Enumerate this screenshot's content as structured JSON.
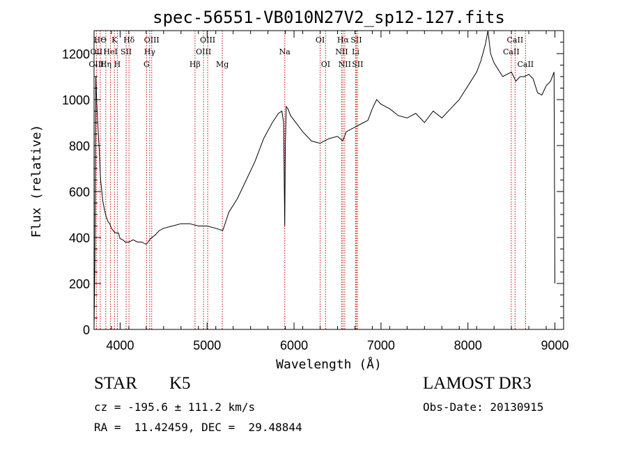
{
  "colors": {
    "spectrum": "#000000",
    "line_marker": "#cc0000",
    "axis": "#000000"
  },
  "chart_data": {
    "type": "line",
    "title": "spec-56551-VB010N27V2_sp12-127.fits",
    "xlabel": "Wavelength (Å)",
    "ylabel": "Flux (relative)",
    "xlim": [
      3700,
      9100
    ],
    "ylim": [
      0,
      1300
    ],
    "x_ticks": [
      4000,
      5000,
      6000,
      7000,
      8000,
      9000
    ],
    "y_ticks": [
      0,
      200,
      400,
      600,
      800,
      1000,
      1200
    ],
    "grid": false,
    "series": [
      {
        "x": [
          3700,
          3710,
          3720,
          3730,
          3745,
          3760,
          3775,
          3790,
          3800,
          3820,
          3840,
          3860,
          3880,
          3900,
          3920,
          3940,
          3960,
          3980,
          4000,
          4030,
          4060,
          4100,
          4150,
          4200,
          4250,
          4300,
          4350,
          4400,
          4450,
          4500,
          4600,
          4700,
          4800,
          4900,
          5000,
          5100,
          5180,
          5250,
          5350,
          5450,
          5550,
          5650,
          5750,
          5820,
          5860,
          5880,
          5893,
          5900,
          5910,
          5930,
          5960,
          6000,
          6100,
          6200,
          6300,
          6400,
          6500,
          6560,
          6600,
          6700,
          6800,
          6850,
          6900,
          6950,
          7000,
          7100,
          7200,
          7300,
          7400,
          7500,
          7600,
          7700,
          7800,
          7900,
          8000,
          8100,
          8150,
          8200,
          8230,
          8260,
          8300,
          8400,
          8500,
          8550,
          8600,
          8650,
          8700,
          8750,
          8800,
          8850,
          8900,
          8950,
          8990,
          9000
        ],
        "values": [
          0,
          300,
          1100,
          1000,
          880,
          780,
          650,
          600,
          560,
          520,
          490,
          470,
          460,
          440,
          430,
          420,
          420,
          420,
          395,
          390,
          380,
          380,
          390,
          380,
          380,
          370,
          395,
          410,
          430,
          440,
          450,
          460,
          460,
          450,
          450,
          440,
          430,
          510,
          570,
          650,
          730,
          830,
          900,
          940,
          950,
          900,
          450,
          800,
          970,
          960,
          930,
          910,
          860,
          820,
          810,
          830,
          840,
          820,
          860,
          880,
          900,
          910,
          960,
          1000,
          980,
          960,
          930,
          920,
          940,
          900,
          950,
          920,
          960,
          1000,
          1060,
          1120,
          1170,
          1240,
          1300,
          1200,
          1160,
          1100,
          1120,
          1080,
          1100,
          1100,
          1110,
          1090,
          1030,
          1020,
          1060,
          1080,
          1120,
          200
        ]
      }
    ],
    "annotations": [
      {
        "label": "HΘ",
        "x": 3771,
        "row": 1
      },
      {
        "label": "OII",
        "x": 3727,
        "row": 2
      },
      {
        "label": "OIII",
        "x": 3727,
        "row": 3
      },
      {
        "label": "K",
        "x": 3934,
        "row": 1
      },
      {
        "label": "HeI",
        "x": 3889,
        "row": 2
      },
      {
        "label": "Hη",
        "x": 3835,
        "row": 3
      },
      {
        "label": "SII",
        "x": 4069,
        "row": 2
      },
      {
        "label": "H",
        "x": 3968,
        "row": 3
      },
      {
        "label": "Hδ",
        "x": 4102,
        "row": 1
      },
      {
        "label": "OIII",
        "x": 4363,
        "row": 1
      },
      {
        "label": "Hγ",
        "x": 4340,
        "row": 2
      },
      {
        "label": "G",
        "x": 4304,
        "row": 3
      },
      {
        "label": "Hβ",
        "x": 4861,
        "row": 3
      },
      {
        "label": "OIII",
        "x": 5007,
        "row": 1
      },
      {
        "label": "OIII",
        "x": 4959,
        "row": 2
      },
      {
        "label": "Mg",
        "x": 5175,
        "row": 3
      },
      {
        "label": "Na",
        "x": 5893,
        "row": 2
      },
      {
        "label": "OI",
        "x": 6300,
        "row": 1
      },
      {
        "label": "OI",
        "x": 6363,
        "row": 3
      },
      {
        "label": "Hα",
        "x": 6563,
        "row": 1
      },
      {
        "label": "NII",
        "x": 6548,
        "row": 2
      },
      {
        "label": "NII",
        "x": 6583,
        "row": 3
      },
      {
        "label": "SII",
        "x": 6716,
        "row": 1
      },
      {
        "label": "Li",
        "x": 6708,
        "row": 2
      },
      {
        "label": "SII",
        "x": 6731,
        "row": 3
      },
      {
        "label": "CaII",
        "x": 8542,
        "row": 1
      },
      {
        "label": "CaII",
        "x": 8498,
        "row": 2
      },
      {
        "label": "CaII",
        "x": 8662,
        "row": 3
      }
    ]
  },
  "info": {
    "class_label": "STAR",
    "subclass_label": "K5",
    "survey": "LAMOST DR3",
    "cz": "cz = -195.6 ± 111.2 km/s",
    "obs_date": "Obs-Date: 20130915",
    "coords": "RA =  11.42459, DEC =  29.48844"
  }
}
